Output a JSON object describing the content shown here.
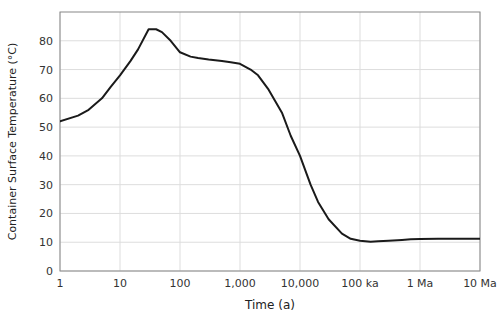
{
  "chart_data": {
    "type": "line",
    "xlabel": "Time (a)",
    "ylabel": "Container Surface Temperature (°C)",
    "log": "x",
    "grid": true,
    "color": "#1a1a1a",
    "xlim": [
      1,
      10000000
    ],
    "xticks": [
      1,
      10,
      100,
      {
        "value": 1000,
        "label": "1,000"
      },
      {
        "value": 10000,
        "label": "10,000"
      },
      {
        "value": 100000,
        "label": "100 ka"
      },
      {
        "value": 1000000,
        "label": "1 Ma"
      },
      {
        "value": 10000000,
        "label": "10 Ma"
      }
    ],
    "ylim": [
      0,
      90
    ],
    "yticks": [
      0,
      10,
      20,
      30,
      40,
      50,
      60,
      70,
      80
    ],
    "x": [
      1,
      2,
      3,
      5,
      7,
      10,
      15,
      20,
      30,
      40,
      50,
      70,
      100,
      150,
      200,
      300,
      500,
      700,
      1000,
      1500,
      2000,
      3000,
      5000,
      7000,
      10000,
      15000,
      20000,
      30000,
      50000,
      70000,
      100000,
      150000,
      200000,
      300000,
      500000,
      700000,
      1000000,
      2000000,
      5000000,
      10000000
    ],
    "values": [
      52,
      54,
      56,
      60,
      64,
      68,
      73,
      77,
      84,
      84,
      83,
      80,
      76,
      74.5,
      74,
      73.5,
      73,
      72.5,
      72,
      70,
      68,
      63,
      55,
      47,
      40,
      30,
      24,
      18,
      13,
      11.2,
      10.5,
      10.2,
      10.3,
      10.5,
      10.8,
      11.0,
      11.1,
      11.2,
      11.2,
      11.2
    ]
  }
}
